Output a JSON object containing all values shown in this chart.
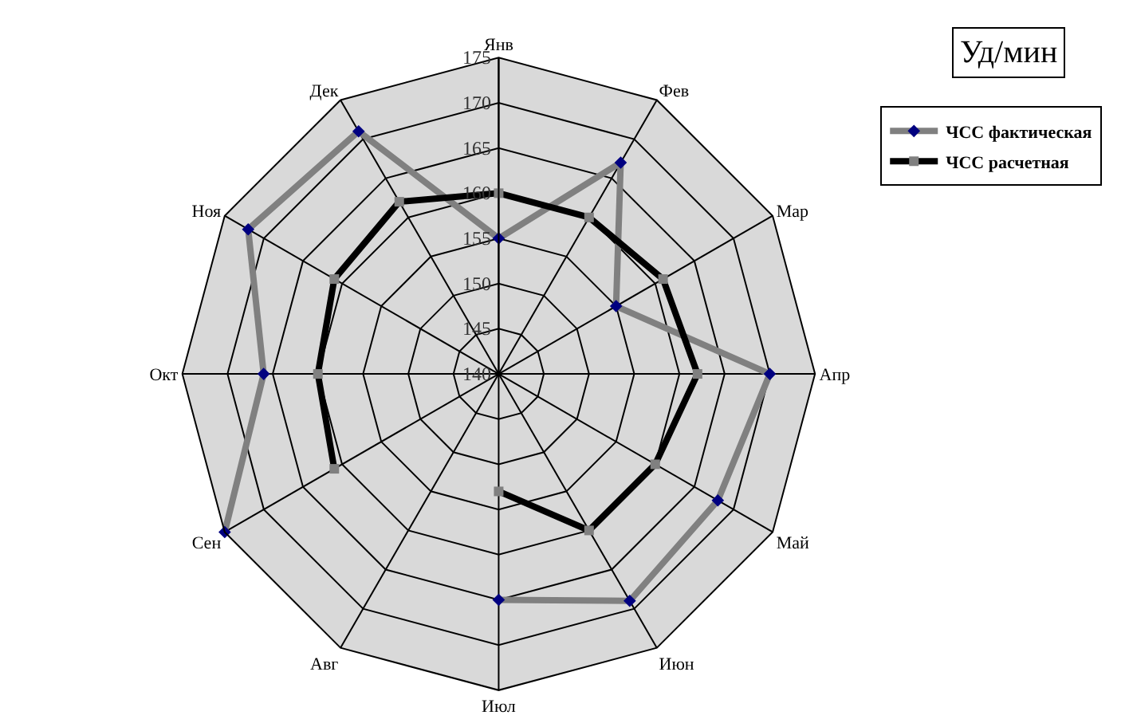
{
  "chart_data": {
    "type": "radar",
    "categories": [
      "Янв",
      "Фев",
      "Мар",
      "Апр",
      "Май",
      "Июн",
      "Июл",
      "Авг",
      "Сен",
      "Окт",
      "Ноя",
      "Дек"
    ],
    "series": [
      {
        "name": "ЧСС фактическая",
        "color": "#808080",
        "marker": "diamond",
        "values": [
          155,
          167,
          155,
          170,
          168,
          169,
          165,
          null,
          175,
          166,
          172,
          171
        ]
      },
      {
        "name": "ЧСС расчетная",
        "color": "#000000",
        "marker": "square",
        "values": [
          160,
          160,
          161,
          162,
          160,
          160,
          153,
          null,
          161,
          160,
          161,
          162
        ]
      }
    ],
    "ylim": [
      140,
      175
    ],
    "yticks": [
      140,
      145,
      150,
      155,
      160,
      165,
      170,
      175
    ],
    "annotations": [
      "Уд/мин"
    ],
    "grid": true,
    "legend": "top right"
  }
}
